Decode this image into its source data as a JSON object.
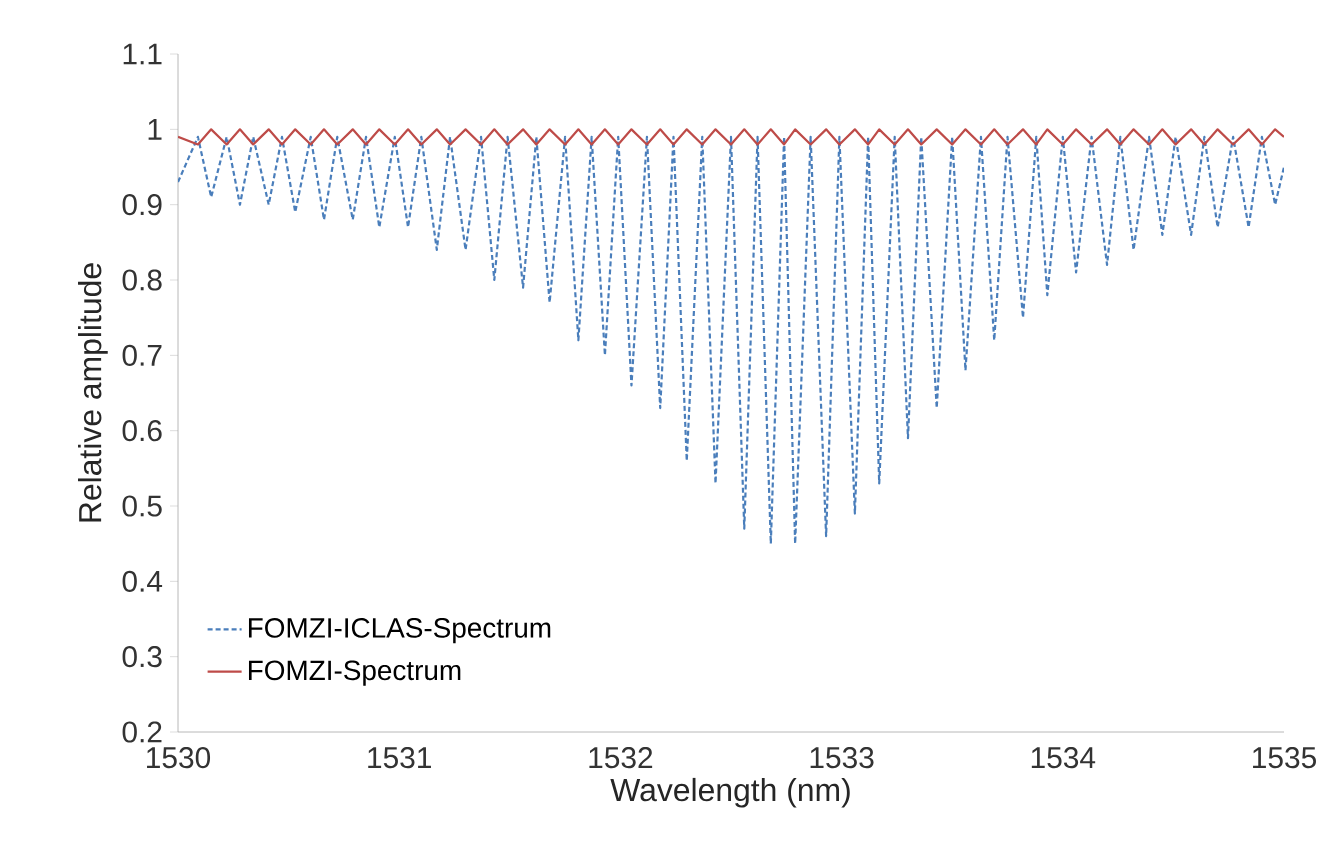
{
  "chart_data": {
    "type": "line",
    "xlabel": "Wavelength (nm)",
    "ylabel": "Relative amplitude",
    "xlim": [
      1530,
      1535
    ],
    "xticks": [
      1530,
      1531,
      1532,
      1533,
      1534,
      1535
    ],
    "ylim": [
      0.2,
      1.1
    ],
    "yticks": [
      0.2,
      0.3,
      0.4,
      0.5,
      0.6,
      0.7,
      0.8,
      0.9,
      1,
      1.1
    ],
    "grid": false,
    "legend": "bottom left",
    "series": [
      {
        "name": "FOMZI-ICLAS-Spectrum",
        "color": "#4a7ebb",
        "line_style": "dashed",
        "x": [
          1530.0,
          1530.09,
          1530.15,
          1530.22,
          1530.28,
          1530.34,
          1530.41,
          1530.47,
          1530.53,
          1530.6,
          1530.66,
          1530.72,
          1530.79,
          1530.85,
          1530.91,
          1530.98,
          1531.04,
          1531.1,
          1531.17,
          1531.23,
          1531.3,
          1531.37,
          1531.43,
          1531.49,
          1531.56,
          1531.62,
          1531.68,
          1531.75,
          1531.81,
          1531.87,
          1531.93,
          1531.99,
          1532.05,
          1532.12,
          1532.18,
          1532.24,
          1532.3,
          1532.37,
          1532.43,
          1532.5,
          1532.56,
          1532.62,
          1532.68,
          1532.74,
          1532.79,
          1532.86,
          1532.93,
          1532.99,
          1533.06,
          1533.12,
          1533.17,
          1533.24,
          1533.3,
          1533.36,
          1533.43,
          1533.5,
          1533.56,
          1533.63,
          1533.69,
          1533.75,
          1533.82,
          1533.88,
          1533.93,
          1534.0,
          1534.06,
          1534.13,
          1534.2,
          1534.26,
          1534.32,
          1534.39,
          1534.45,
          1534.51,
          1534.58,
          1534.64,
          1534.7,
          1534.77,
          1534.84,
          1534.9,
          1534.96,
          1535.0
        ],
        "values": [
          0.93,
          0.99,
          0.91,
          0.99,
          0.9,
          0.99,
          0.9,
          0.99,
          0.89,
          0.99,
          0.88,
          0.99,
          0.88,
          0.99,
          0.87,
          0.99,
          0.87,
          0.99,
          0.84,
          0.99,
          0.84,
          0.99,
          0.8,
          0.99,
          0.79,
          0.99,
          0.77,
          0.99,
          0.72,
          0.99,
          0.7,
          0.99,
          0.66,
          0.99,
          0.63,
          0.99,
          0.56,
          0.99,
          0.53,
          0.99,
          0.47,
          0.99,
          0.45,
          0.99,
          0.45,
          0.99,
          0.46,
          0.99,
          0.49,
          0.99,
          0.53,
          0.99,
          0.59,
          0.99,
          0.63,
          0.99,
          0.68,
          0.99,
          0.72,
          0.99,
          0.75,
          0.99,
          0.78,
          0.99,
          0.81,
          0.99,
          0.82,
          0.99,
          0.84,
          0.99,
          0.86,
          0.99,
          0.86,
          0.99,
          0.87,
          0.99,
          0.87,
          0.99,
          0.9,
          0.95
        ]
      },
      {
        "name": "FOMZI-Spectrum",
        "color": "#be4b48",
        "line_style": "solid",
        "x": [
          1530.0,
          1530.09,
          1530.15,
          1530.22,
          1530.28,
          1530.34,
          1530.41,
          1530.47,
          1530.53,
          1530.6,
          1530.66,
          1530.72,
          1530.79,
          1530.85,
          1530.91,
          1530.98,
          1531.04,
          1531.1,
          1531.17,
          1531.23,
          1531.3,
          1531.37,
          1531.43,
          1531.49,
          1531.56,
          1531.62,
          1531.68,
          1531.75,
          1531.81,
          1531.87,
          1531.93,
          1531.99,
          1532.05,
          1532.12,
          1532.18,
          1532.24,
          1532.3,
          1532.37,
          1532.43,
          1532.5,
          1532.56,
          1532.62,
          1532.68,
          1532.74,
          1532.79,
          1532.86,
          1532.93,
          1532.99,
          1533.06,
          1533.12,
          1533.17,
          1533.24,
          1533.3,
          1533.36,
          1533.43,
          1533.5,
          1533.56,
          1533.63,
          1533.69,
          1533.75,
          1533.82,
          1533.88,
          1533.93,
          1534.0,
          1534.06,
          1534.13,
          1534.2,
          1534.26,
          1534.32,
          1534.39,
          1534.45,
          1534.51,
          1534.58,
          1534.64,
          1534.7,
          1534.77,
          1534.84,
          1534.9,
          1534.96,
          1535.0
        ],
        "values": [
          0.99,
          0.98,
          1.0,
          0.98,
          1.0,
          0.98,
          1.0,
          0.98,
          1.0,
          0.98,
          1.0,
          0.98,
          1.0,
          0.98,
          1.0,
          0.98,
          1.0,
          0.98,
          1.0,
          0.98,
          1.0,
          0.98,
          1.0,
          0.98,
          1.0,
          0.98,
          1.0,
          0.98,
          1.0,
          0.98,
          1.0,
          0.98,
          1.0,
          0.98,
          1.0,
          0.98,
          1.0,
          0.98,
          1.0,
          0.98,
          1.0,
          0.98,
          1.0,
          0.98,
          1.0,
          0.98,
          1.0,
          0.98,
          1.0,
          0.98,
          1.0,
          0.98,
          1.0,
          0.98,
          1.0,
          0.98,
          1.0,
          0.98,
          1.0,
          0.98,
          1.0,
          0.98,
          1.0,
          0.98,
          1.0,
          0.98,
          1.0,
          0.98,
          1.0,
          0.98,
          1.0,
          0.98,
          1.0,
          0.98,
          1.0,
          0.98,
          1.0,
          0.98,
          1.0,
          0.99
        ]
      }
    ]
  }
}
